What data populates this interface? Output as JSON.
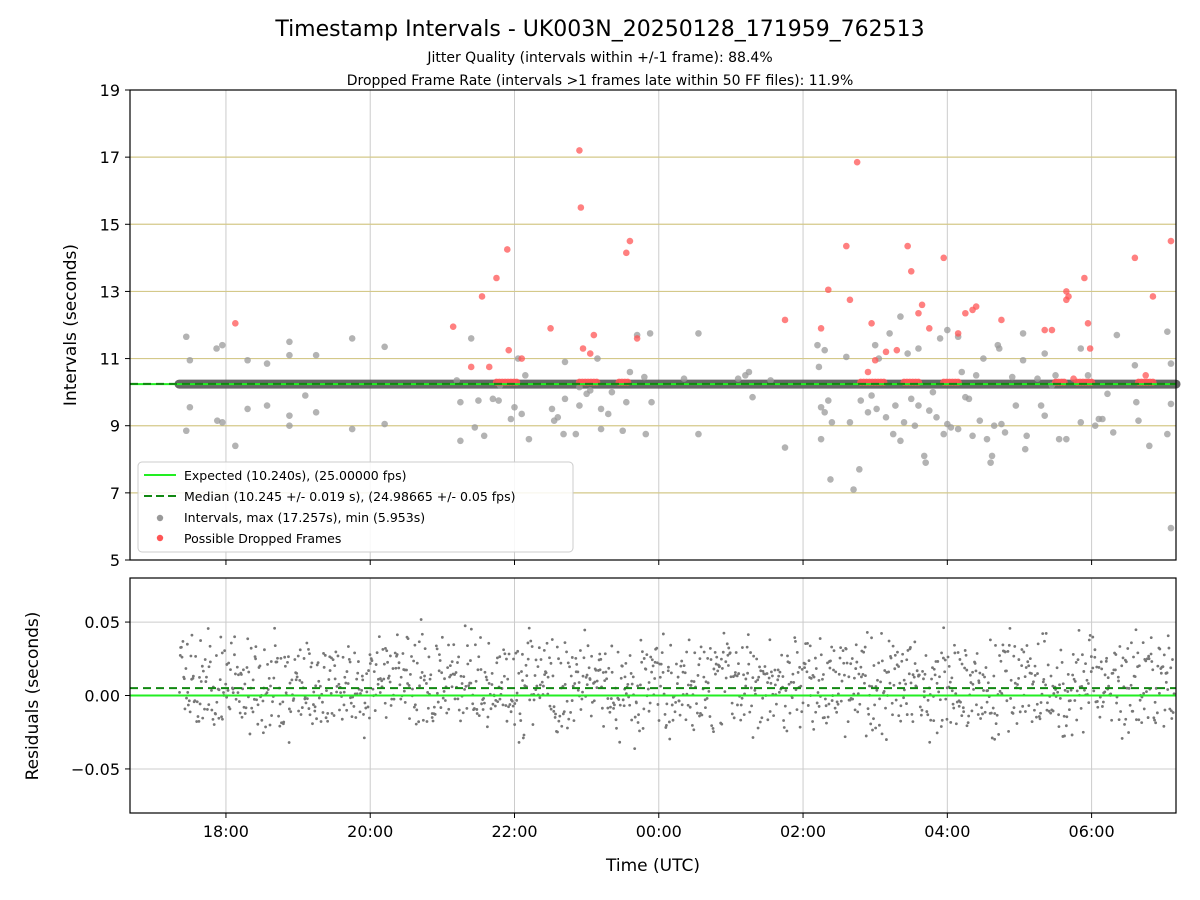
{
  "chart_data": [
    {
      "type": "scatter",
      "title": "Timestamp Intervals - UK003N_20250128_171959_762513",
      "subtitle_1": "Jitter Quality (intervals within +/-1 frame): 88.4%",
      "subtitle_2": "Dropped Frame Rate (intervals >1 frames late within 50 FF files): 11.9%",
      "ylabel": "Intervals (seconds)",
      "xlim": [
        -1.33,
        13.17
      ],
      "ylim": [
        5,
        19
      ],
      "y_ticks": [
        "5",
        "7",
        "9",
        "11",
        "13",
        "15",
        "17",
        "19"
      ],
      "grid": true,
      "legend_position": "lower-left",
      "expected_value": 10.24,
      "median_value": 10.245,
      "legend": {
        "expected": "Expected (10.240s), (25.00000 fps)",
        "median": "Median (10.245 +/- 0.019 s), (24.98665 +/- 0.05 fps)",
        "intervals": "Intervals, max (17.257s), min (5.953s)",
        "dropped": "Possible Dropped Frames"
      },
      "colors": {
        "expected": "#22ee22",
        "median": "#118811",
        "intervals": "#999999",
        "dropped": "#ff5555",
        "frame_lines": "#d4c98a"
      },
      "series": [
        {
          "name": "Intervals, max (17.257s), min (5.953s)",
          "points": [
            [
              -0.55,
              11.65
            ],
            [
              -0.55,
              8.85
            ],
            [
              -0.5,
              10.95
            ],
            [
              -0.5,
              9.55
            ],
            [
              -0.13,
              11.3
            ],
            [
              -0.12,
              9.15
            ],
            [
              -0.05,
              11.4
            ],
            [
              -0.05,
              9.1
            ],
            [
              0.13,
              8.4
            ],
            [
              0.3,
              10.95
            ],
            [
              0.3,
              9.5
            ],
            [
              0.57,
              10.85
            ],
            [
              0.57,
              9.6
            ],
            [
              0.88,
              11.5
            ],
            [
              0.88,
              9.3
            ],
            [
              0.88,
              9.0
            ],
            [
              0.88,
              11.1
            ],
            [
              1.1,
              9.9
            ],
            [
              1.25,
              11.1
            ],
            [
              1.25,
              9.4
            ],
            [
              1.75,
              11.6
            ],
            [
              1.75,
              8.9
            ],
            [
              2.2,
              11.35
            ],
            [
              2.2,
              9.05
            ],
            [
              3.2,
              10.35
            ],
            [
              3.25,
              8.55
            ],
            [
              3.25,
              9.7
            ],
            [
              3.4,
              11.6
            ],
            [
              3.45,
              8.95
            ],
            [
              3.5,
              9.75
            ],
            [
              3.58,
              8.7
            ],
            [
              3.7,
              9.8
            ],
            [
              3.78,
              9.75
            ],
            [
              3.8,
              10.2
            ],
            [
              3.95,
              9.2
            ],
            [
              4.0,
              9.55
            ],
            [
              4.05,
              11.0
            ],
            [
              4.1,
              9.35
            ],
            [
              4.15,
              10.5
            ],
            [
              4.2,
              8.6
            ],
            [
              4.52,
              9.5
            ],
            [
              4.55,
              9.15
            ],
            [
              4.6,
              9.25
            ],
            [
              4.68,
              8.75
            ],
            [
              4.7,
              10.9
            ],
            [
              4.7,
              9.8
            ],
            [
              4.85,
              8.75
            ],
            [
              4.9,
              9.6
            ],
            [
              4.9,
              10.15
            ],
            [
              5.0,
              9.95
            ],
            [
              5.05,
              10.05
            ],
            [
              5.15,
              11.0
            ],
            [
              5.2,
              9.5
            ],
            [
              5.2,
              8.9
            ],
            [
              5.3,
              9.35
            ],
            [
              5.35,
              10.0
            ],
            [
              5.5,
              8.85
            ],
            [
              5.55,
              9.7
            ],
            [
              5.6,
              10.6
            ],
            [
              5.7,
              11.7
            ],
            [
              5.8,
              10.45
            ],
            [
              5.82,
              8.75
            ],
            [
              5.88,
              11.75
            ],
            [
              5.9,
              9.7
            ],
            [
              6.35,
              10.4
            ],
            [
              6.55,
              11.75
            ],
            [
              6.55,
              8.75
            ],
            [
              7.1,
              10.4
            ],
            [
              7.2,
              10.5
            ],
            [
              7.25,
              10.6
            ],
            [
              7.3,
              9.85
            ],
            [
              7.55,
              10.35
            ],
            [
              7.75,
              8.35
            ],
            [
              8.2,
              11.4
            ],
            [
              8.22,
              10.75
            ],
            [
              8.25,
              9.55
            ],
            [
              8.25,
              8.6
            ],
            [
              8.3,
              9.4
            ],
            [
              8.3,
              11.25
            ],
            [
              8.35,
              9.75
            ],
            [
              8.38,
              7.4
            ],
            [
              8.4,
              9.1
            ],
            [
              8.6,
              11.05
            ],
            [
              8.65,
              9.1
            ],
            [
              8.7,
              7.1
            ],
            [
              8.78,
              7.7
            ],
            [
              8.8,
              9.75
            ],
            [
              8.9,
              9.4
            ],
            [
              8.95,
              9.9
            ],
            [
              9.0,
              11.4
            ],
            [
              9.02,
              9.5
            ],
            [
              9.05,
              11.0
            ],
            [
              9.15,
              9.25
            ],
            [
              9.2,
              11.75
            ],
            [
              9.25,
              8.75
            ],
            [
              9.28,
              9.6
            ],
            [
              9.35,
              12.25
            ],
            [
              9.35,
              8.55
            ],
            [
              9.4,
              9.1
            ],
            [
              9.45,
              11.15
            ],
            [
              9.5,
              9.8
            ],
            [
              9.55,
              9.0
            ],
            [
              9.6,
              11.3
            ],
            [
              9.6,
              9.6
            ],
            [
              9.68,
              8.1
            ],
            [
              9.7,
              7.9
            ],
            [
              9.75,
              9.45
            ],
            [
              9.8,
              10.0
            ],
            [
              9.85,
              9.25
            ],
            [
              9.9,
              11.6
            ],
            [
              9.95,
              8.75
            ],
            [
              10.0,
              11.85
            ],
            [
              10.0,
              9.05
            ],
            [
              10.05,
              8.95
            ],
            [
              10.15,
              11.65
            ],
            [
              10.15,
              8.9
            ],
            [
              10.2,
              10.6
            ],
            [
              10.25,
              9.85
            ],
            [
              10.3,
              9.8
            ],
            [
              10.35,
              8.7
            ],
            [
              10.4,
              10.5
            ],
            [
              10.45,
              9.15
            ],
            [
              10.5,
              11.0
            ],
            [
              10.55,
              8.6
            ],
            [
              10.6,
              7.9
            ],
            [
              10.62,
              8.1
            ],
            [
              10.65,
              9.0
            ],
            [
              10.7,
              11.4
            ],
            [
              10.72,
              11.3
            ],
            [
              10.75,
              9.05
            ],
            [
              10.8,
              8.8
            ],
            [
              10.9,
              10.45
            ],
            [
              10.95,
              9.6
            ],
            [
              11.05,
              10.95
            ],
            [
              11.05,
              11.75
            ],
            [
              11.08,
              8.3
            ],
            [
              11.1,
              8.7
            ],
            [
              11.25,
              10.4
            ],
            [
              11.3,
              9.6
            ],
            [
              11.35,
              11.15
            ],
            [
              11.35,
              9.3
            ],
            [
              11.45,
              10.2
            ],
            [
              11.5,
              10.5
            ],
            [
              11.55,
              8.6
            ],
            [
              11.6,
              10.3
            ],
            [
              11.65,
              8.6
            ],
            [
              11.85,
              11.3
            ],
            [
              11.85,
              9.1
            ],
            [
              11.95,
              10.5
            ],
            [
              12.05,
              9.0
            ],
            [
              12.1,
              9.2
            ],
            [
              12.15,
              9.2
            ],
            [
              12.22,
              9.95
            ],
            [
              12.3,
              8.8
            ],
            [
              12.35,
              11.7
            ],
            [
              12.6,
              10.8
            ],
            [
              12.62,
              9.7
            ],
            [
              12.65,
              9.15
            ],
            [
              12.8,
              8.4
            ],
            [
              13.05,
              11.8
            ],
            [
              13.05,
              8.75
            ],
            [
              13.1,
              9.65
            ],
            [
              13.1,
              10.85
            ],
            [
              13.1,
              5.95
            ]
          ]
        },
        {
          "name": "Possible Dropped Frames",
          "points": [
            [
              0.13,
              12.05
            ],
            [
              3.15,
              11.95
            ],
            [
              3.4,
              10.75
            ],
            [
              3.55,
              12.85
            ],
            [
              3.65,
              10.75
            ],
            [
              3.75,
              13.4
            ],
            [
              3.9,
              14.25
            ],
            [
              3.92,
              11.25
            ],
            [
              4.1,
              11.0
            ],
            [
              4.5,
              11.9
            ],
            [
              4.9,
              17.2
            ],
            [
              4.92,
              15.5
            ],
            [
              4.95,
              11.3
            ],
            [
              5.05,
              11.15
            ],
            [
              5.1,
              11.7
            ],
            [
              5.55,
              14.15
            ],
            [
              5.6,
              14.5
            ],
            [
              5.7,
              11.6
            ],
            [
              7.75,
              12.15
            ],
            [
              8.25,
              11.9
            ],
            [
              8.35,
              13.05
            ],
            [
              8.6,
              14.35
            ],
            [
              8.65,
              12.75
            ],
            [
              8.75,
              16.85
            ],
            [
              8.9,
              10.6
            ],
            [
              8.95,
              12.05
            ],
            [
              9.0,
              10.95
            ],
            [
              9.15,
              11.2
            ],
            [
              9.3,
              11.25
            ],
            [
              9.45,
              14.35
            ],
            [
              9.5,
              13.6
            ],
            [
              9.6,
              12.35
            ],
            [
              9.65,
              12.6
            ],
            [
              9.75,
              11.9
            ],
            [
              9.95,
              14.0
            ],
            [
              10.15,
              11.75
            ],
            [
              10.25,
              12.35
            ],
            [
              10.35,
              12.45
            ],
            [
              10.4,
              12.55
            ],
            [
              10.75,
              12.15
            ],
            [
              11.35,
              11.85
            ],
            [
              11.45,
              11.85
            ],
            [
              11.65,
              12.75
            ],
            [
              11.65,
              13.0
            ],
            [
              11.68,
              12.85
            ],
            [
              11.75,
              10.4
            ],
            [
              11.9,
              13.4
            ],
            [
              11.95,
              12.05
            ],
            [
              11.98,
              11.3
            ],
            [
              12.6,
              14.0
            ],
            [
              12.75,
              10.5
            ],
            [
              12.85,
              12.85
            ],
            [
              13.1,
              14.5
            ]
          ]
        }
      ],
      "dropped_clusters": [
        [
          3.75,
          4.05
        ],
        [
          4.9,
          5.15
        ],
        [
          5.45,
          5.6
        ],
        [
          8.8,
          9.15
        ],
        [
          9.4,
          9.6
        ],
        [
          9.95,
          10.15
        ],
        [
          11.5,
          11.65
        ],
        [
          11.8,
          12.0
        ],
        [
          12.65,
          12.85
        ]
      ]
    },
    {
      "type": "scatter",
      "xlabel": "Time (UTC)",
      "ylabel": "Residuals (seconds)",
      "xlim": [
        -1.33,
        13.17
      ],
      "ylim": [
        -0.08,
        0.08
      ],
      "x_ticks": [
        "18:00",
        "20:00",
        "22:00",
        "00:00",
        "02:00",
        "04:00",
        "06:00"
      ],
      "x_tick_values": [
        0,
        2,
        4,
        6,
        8,
        10,
        12
      ],
      "y_ticks": [
        "0.05",
        "0.00",
        "−0.05"
      ],
      "grid": true,
      "expected_residual": 0.0,
      "median_residual": 0.005,
      "residual_start": -0.65,
      "residual_spread": 0.02,
      "colors": {
        "points": "#777777",
        "expected": "#22ee22",
        "median": "#118811"
      }
    }
  ]
}
